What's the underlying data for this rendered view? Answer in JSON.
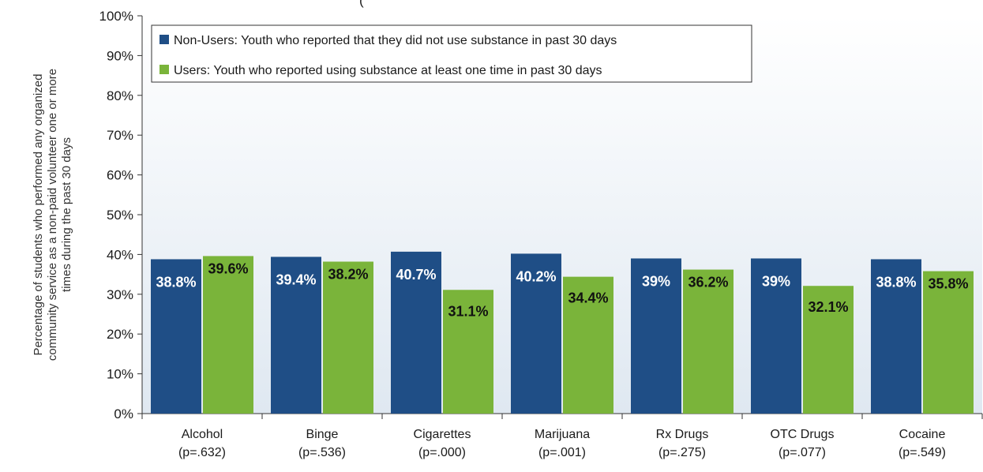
{
  "chart_data": {
    "type": "bar",
    "title_fragment": "(",
    "ylabel": "Percentage of students who performed any organized community service as a non-paid volunteer one or more times during the past 30 days",
    "ylabel_lines": [
      "Percentage of students who performed any organized",
      "community service as a non-paid volunteer one or more",
      "times during the past 30 days"
    ],
    "ylim": [
      0,
      100
    ],
    "y_ticks": [
      "0%",
      "10%",
      "20%",
      "30%",
      "40%",
      "50%",
      "60%",
      "70%",
      "80%",
      "90%",
      "100%"
    ],
    "grid": false,
    "legend_position": "top-left",
    "categories": [
      {
        "name": "Alcohol",
        "pvalue": "(p=.632)"
      },
      {
        "name": "Binge",
        "pvalue": "(p=.536)"
      },
      {
        "name": "Cigarettes",
        "pvalue": "(p=.000)"
      },
      {
        "name": "Marijuana",
        "pvalue": "(p=.001)"
      },
      {
        "name": "Rx Drugs",
        "pvalue": "(p=.275)"
      },
      {
        "name": "OTC Drugs",
        "pvalue": "(p=.077)"
      },
      {
        "name": "Cocaine",
        "pvalue": "(p=.549)"
      }
    ],
    "series": [
      {
        "name": "Non-Users: Youth who reported that they did not use substance in past 30 days",
        "color": "#1f4e86",
        "values": [
          38.8,
          39.4,
          40.7,
          40.2,
          39,
          39,
          38.8
        ],
        "labels": [
          "38.8%",
          "39.4%",
          "40.7%",
          "40.2%",
          "39%",
          "39%",
          "38.8%"
        ]
      },
      {
        "name": "Users: Youth who reported using substance at least one time in past 30 days",
        "color": "#7ab43a",
        "values": [
          39.6,
          38.2,
          31.1,
          34.4,
          36.2,
          32.1,
          35.8
        ],
        "labels": [
          "39.6%",
          "38.2%",
          "31.1%",
          "34.4%",
          "36.2%",
          "32.1%",
          "35.8%"
        ]
      }
    ]
  }
}
